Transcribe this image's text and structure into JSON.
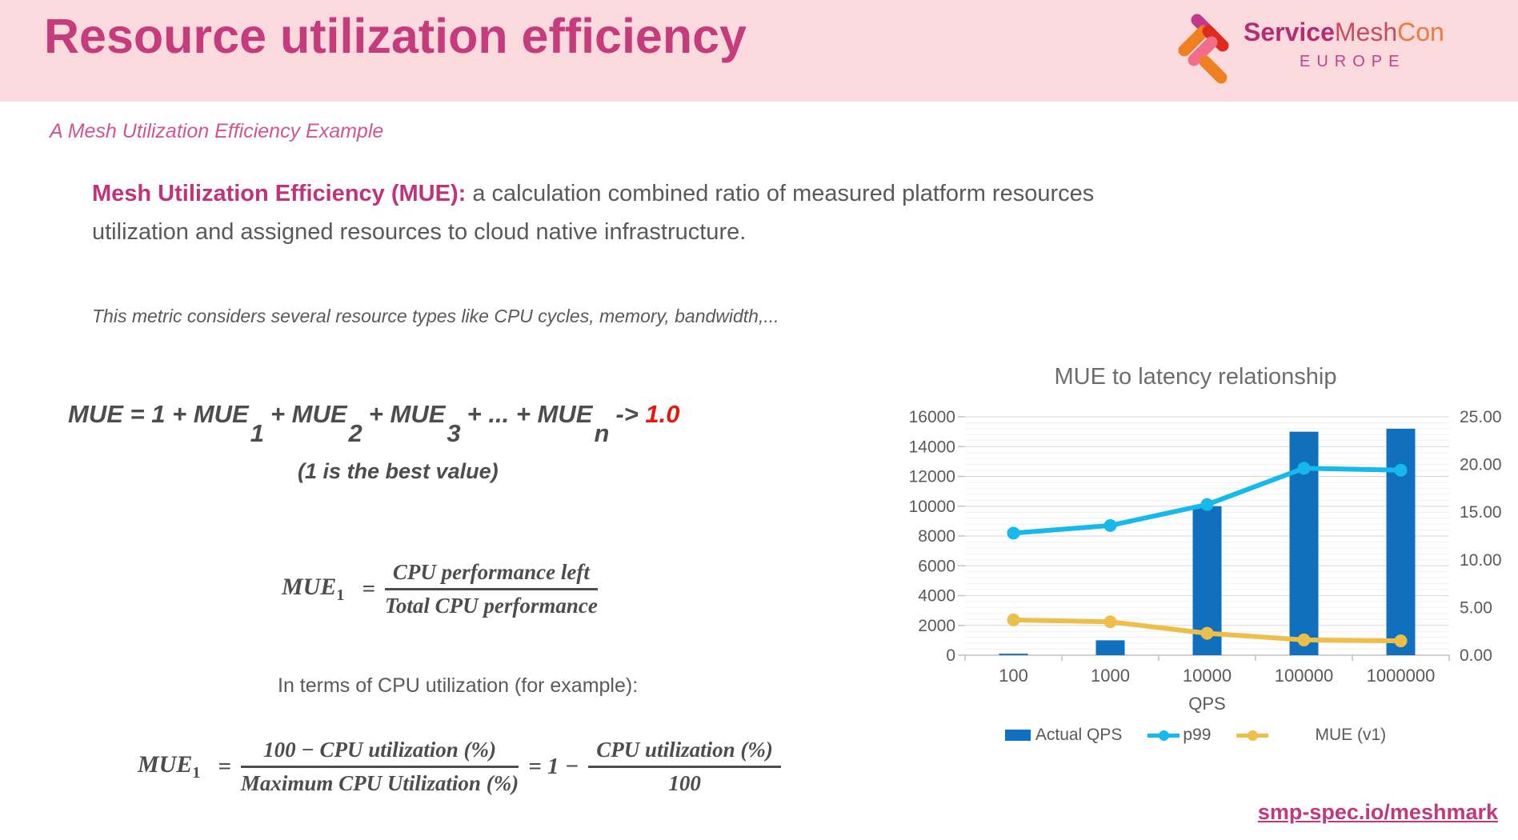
{
  "header": {
    "title": "Resource utilization efficiency",
    "logo": {
      "service": "Service",
      "mesh": "Mesh",
      "con": "Con",
      "region": "EUROPE"
    }
  },
  "subtitle": "A Mesh Utilization Efficiency Example",
  "intro": {
    "lead": "Mesh Utilization Efficiency (MUE):",
    "rest_line1": " a calculation combined ratio of measured platform resources",
    "rest_line2": "utilization and assigned resources to cloud native infrastructure."
  },
  "note": "This metric considers several resource types like CPU cycles, memory, bandwidth,...",
  "formula_sum": {
    "lhs": "MUE",
    "t1": " = 1 + MUE",
    "sub1": "1",
    "t2": "+ MUE",
    "sub2": "2",
    "t3": "+ MUE",
    "sub3": "3",
    "t4": "+ ... + MUE",
    "subn": "n",
    "arrow": "-> ",
    "target": "1.0",
    "caption": "(1 is the best value)"
  },
  "formula_mue1": {
    "lhs": "MUE",
    "lhs_sub": "1",
    "eq": "=",
    "num": "CPU performance left",
    "den": "Total CPU performance"
  },
  "cpu_line": "In terms of CPU utilization (for example):",
  "formula_cpu": {
    "lhs": "MUE",
    "lhs_sub": "1",
    "eq": "=",
    "num1": "100 − CPU utilization (%)",
    "den1": "Maximum CPU Utilization (%)",
    "mid": "= 1 −",
    "num2": "CPU utilization (%)",
    "den2": "100"
  },
  "chart_data": {
    "type": "bar+line",
    "title": "MUE to latency relationship",
    "categories": [
      "100",
      "1000",
      "10000",
      "100000",
      "1000000"
    ],
    "xlabel": "QPS",
    "left_axis": {
      "min": 0,
      "max": 16000,
      "step": 2000,
      "minor_step": 400
    },
    "right_axis": {
      "min": 0,
      "max": 25,
      "step": 5
    },
    "grid": true,
    "legend_position": "bottom",
    "series": [
      {
        "name": "Actual QPS",
        "type": "bar",
        "axis": "left",
        "color": "#1170bd",
        "values": [
          100,
          1000,
          10000,
          15000,
          15200
        ]
      },
      {
        "name": "p99",
        "type": "line",
        "axis": "right",
        "color": "#17b9ec",
        "values": [
          12.8,
          13.6,
          15.8,
          19.6,
          19.4
        ]
      },
      {
        "name": "MUE (v1)",
        "type": "line",
        "axis": "right",
        "color": "#edbe4a",
        "values": [
          3.7,
          3.5,
          2.3,
          1.6,
          1.5
        ]
      }
    ]
  },
  "footer": {
    "link": "smp-spec.io/meshmark"
  },
  "colors": {
    "header_band": "#fbdade",
    "title_text": "#c53b7c",
    "accent_magenta": "#c0337b",
    "body_gray": "#595959",
    "formula_gray": "#4d4d4d",
    "highlight_red": "#e8180c",
    "bar_blue": "#1170bd",
    "line_cyan": "#17b9ec",
    "line_yellow": "#edbe4a",
    "link_pink": "#c0397f"
  }
}
